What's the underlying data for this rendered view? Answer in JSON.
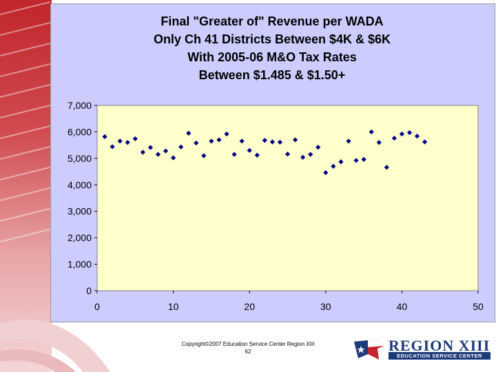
{
  "chart_data": {
    "type": "scatter",
    "title": [
      "Final \"Greater of\" Revenue per WADA",
      "Only Ch 41 Districts Between $4K & $6K",
      "With 2005-06 M&O Tax Rates",
      "Between $1.485 & $1.50+"
    ],
    "xlabel": "",
    "ylabel": "",
    "xlim": [
      0,
      50
    ],
    "ylim": [
      0,
      7000
    ],
    "x_ticks": [
      "0",
      "10",
      "20",
      "30",
      "40",
      "50"
    ],
    "y_ticks": [
      "0",
      "1,000",
      "2,000",
      "3,000",
      "4,000",
      "5,000",
      "6,000",
      "7,000"
    ],
    "grid": false,
    "series": [
      {
        "name": "Revenue per WADA",
        "x": [
          1,
          2,
          3,
          4,
          5,
          6,
          7,
          8,
          9,
          10,
          11,
          12,
          13,
          14,
          15,
          16,
          17,
          18,
          19,
          20,
          21,
          22,
          23,
          24,
          25,
          26,
          27,
          28,
          29,
          30,
          31,
          32,
          33,
          34,
          35,
          36,
          37,
          38,
          39,
          40,
          41,
          42,
          43
        ],
        "y": [
          5820,
          5440,
          5650,
          5600,
          5740,
          5230,
          5410,
          5150,
          5280,
          5020,
          5430,
          5950,
          5580,
          5100,
          5650,
          5700,
          5920,
          5150,
          5650,
          5300,
          5120,
          5680,
          5620,
          5610,
          5160,
          5700,
          5040,
          5150,
          5420,
          4460,
          4700,
          4870,
          5650,
          4920,
          4960,
          6000,
          5600,
          4660,
          5760,
          5920,
          5970,
          5840,
          5620
        ]
      }
    ]
  },
  "colors": {
    "frame_background": "#ccccff",
    "plot_background": "#ffffcc",
    "marker": "#000080"
  },
  "footer": {
    "copyright": "Copyright©2007 Education Service Center Region XIII",
    "page_number": "62"
  },
  "logo": {
    "name": "REGION XIII",
    "subtitle": "EDUCATION SERVICE CENTER"
  }
}
